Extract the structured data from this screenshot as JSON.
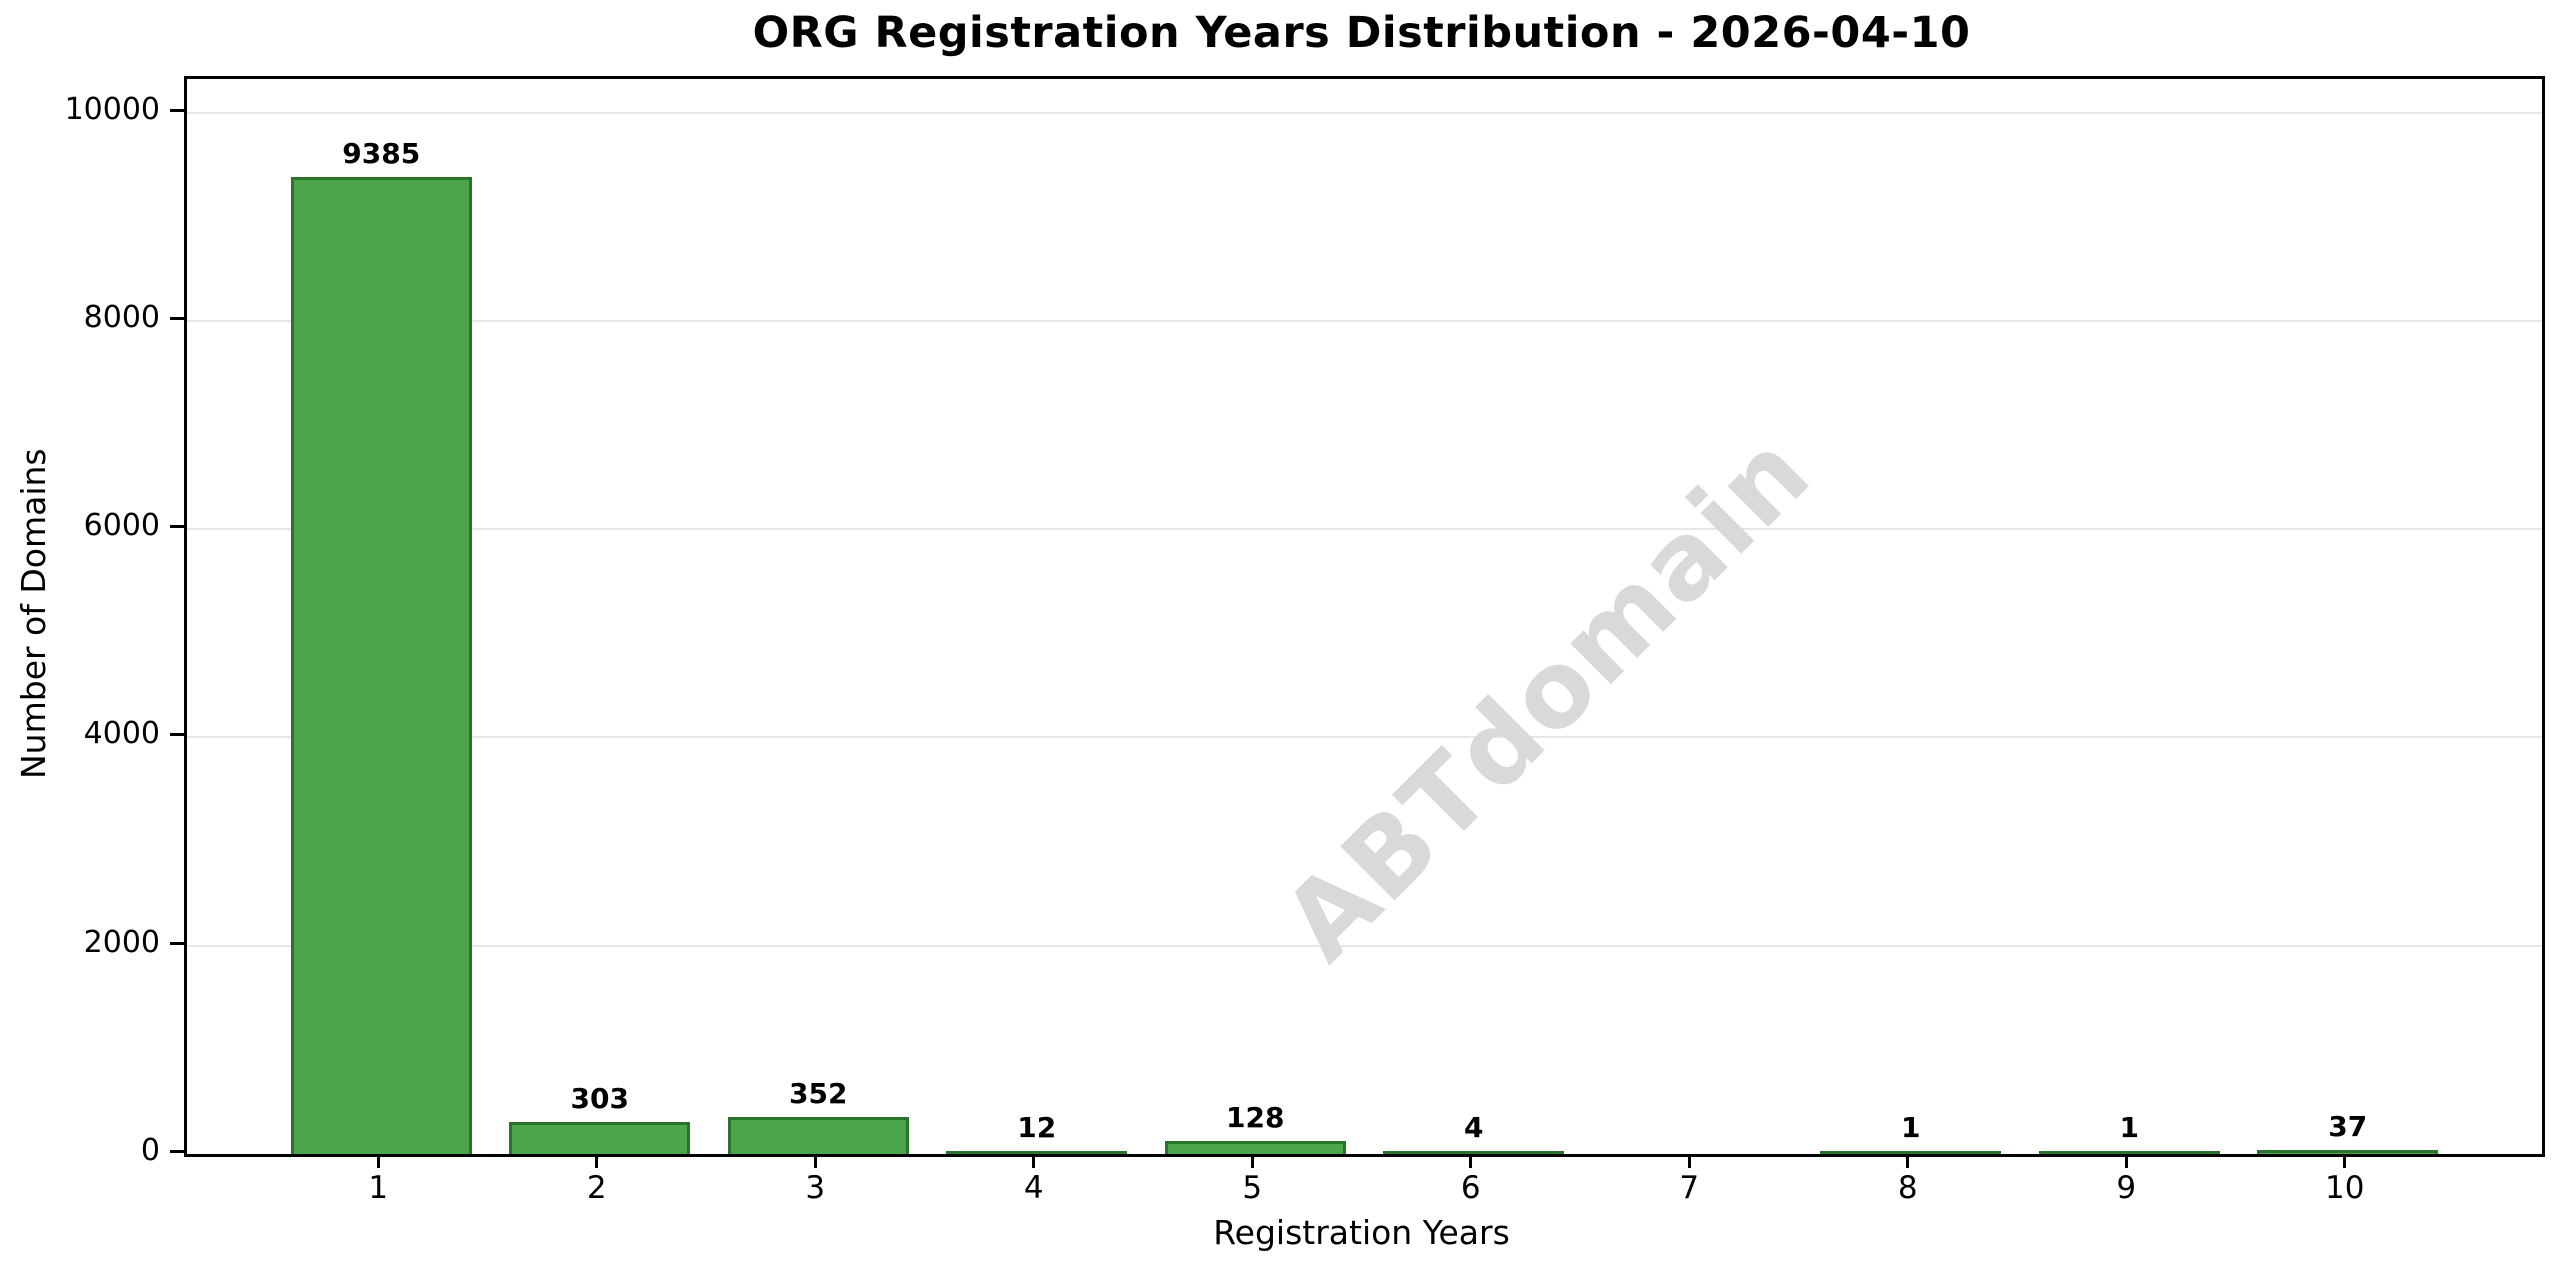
{
  "title": "ORG Registration Years Distribution - 2026-04-10",
  "watermark": "ABTdomain",
  "colors": {
    "bar_fill": "#4ca54c",
    "bar_edge": "#2a742a",
    "grid": "#e7e7e7",
    "axis": "#000000",
    "watermark": "#d9d9d9",
    "background": "#ffffff"
  },
  "chart_data": {
    "type": "bar",
    "title": "ORG Registration Years Distribution - 2026-04-10",
    "xlabel": "Registration Years",
    "ylabel": "Number of Domains",
    "categories": [
      "1",
      "2",
      "3",
      "4",
      "5",
      "6",
      "7",
      "8",
      "9",
      "10"
    ],
    "values": [
      9385,
      303,
      352,
      12,
      128,
      4,
      0,
      1,
      1,
      37
    ],
    "bar_labels": [
      "9385",
      "303",
      "352",
      "12",
      "128",
      "4",
      "",
      "1",
      "1",
      "37"
    ],
    "yticks": [
      0,
      2000,
      4000,
      6000,
      8000,
      10000
    ],
    "ytick_labels": [
      "0",
      "2000",
      "4000",
      "6000",
      "8000",
      "10000"
    ],
    "ylim": [
      0,
      10324
    ],
    "grid": "horizontal",
    "legend_position": "none",
    "bar_color": "#4ca54c",
    "bar_edge_color": "#2a742a"
  }
}
